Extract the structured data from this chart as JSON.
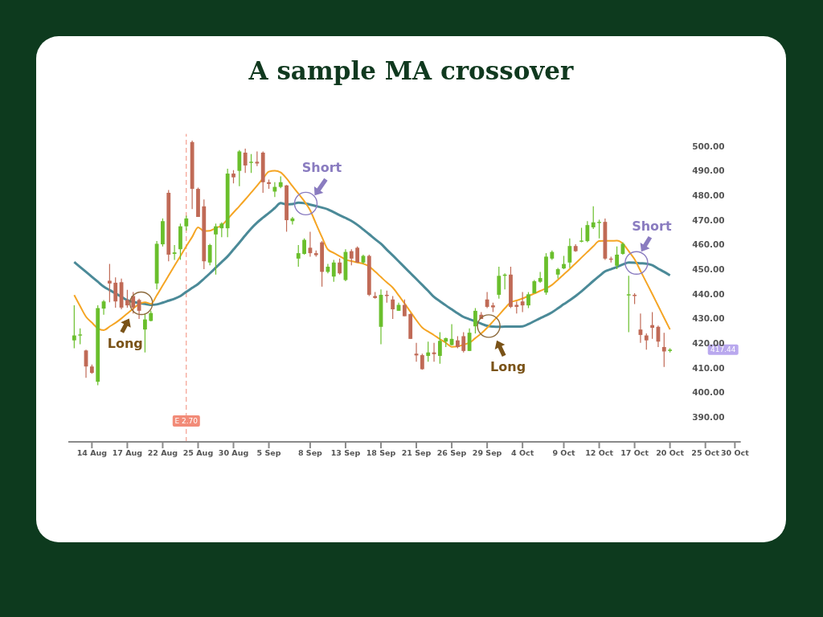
{
  "chart_data": {
    "type": "candlestick",
    "title": "A sample MA crossover",
    "categories": [
      null,
      null,
      null,
      "14 Aug",
      null,
      null,
      null,
      null,
      null,
      "17 Aug",
      null,
      null,
      null,
      null,
      null,
      "22 Aug",
      null,
      null,
      null,
      null,
      null,
      "25 Aug",
      null,
      null,
      null,
      null,
      null,
      "30 Aug",
      null,
      null,
      null,
      null,
      null,
      "5 Sep",
      null,
      null,
      null,
      null,
      null,
      null,
      "8 Sep",
      null,
      null,
      null,
      null,
      null,
      "13 Sep",
      null,
      null,
      null,
      null,
      null,
      "18 Sep",
      null,
      null,
      null,
      null,
      null,
      "21 Sep",
      null,
      null,
      null,
      null,
      null,
      "26 Sep",
      null,
      null,
      null,
      null,
      null,
      "29 Sep",
      null,
      null,
      null,
      null,
      null,
      "4 Oct",
      null,
      null,
      null,
      null,
      null,
      null,
      "9 Oct",
      null,
      null,
      null,
      null,
      null,
      "12 Oct",
      null,
      null,
      null,
      null,
      null,
      "17 Oct",
      null,
      null,
      null,
      null,
      null,
      "20 Oct",
      null,
      null,
      null,
      null,
      null,
      "25 Oct",
      null,
      null,
      null,
      null,
      "30 Oct"
    ],
    "ohlc": [
      [
        421.2,
        435.4,
        418.0,
        423.2
      ],
      [
        423.2,
        426.1,
        419.6,
        423.6
      ],
      [
        417.1,
        417.4,
        406.0,
        410.6
      ],
      [
        410.6,
        411.4,
        407.6,
        408.0
      ],
      [
        404.4,
        435.4,
        403.0,
        434.3
      ],
      [
        434.1,
        437.6,
        431.6,
        437.0
      ],
      [
        445.4,
        452.2,
        436.7,
        444.3
      ],
      [
        444.6,
        446.8,
        434.5,
        437.0
      ],
      [
        444.8,
        446.3,
        433.8,
        434.5
      ],
      [
        437.6,
        441.7,
        434.5,
        435.4
      ],
      [
        439.2,
        440.8,
        432.1,
        434.5
      ],
      [
        437.6,
        438.1,
        429.9,
        433.2
      ],
      [
        425.6,
        432.1,
        416.3,
        429.7
      ],
      [
        429.1,
        433.2,
        428.9,
        432.3
      ],
      [
        444.3,
        461.5,
        441.9,
        460.4
      ],
      [
        460.2,
        470.7,
        459.3,
        469.6
      ],
      [
        481.1,
        482.2,
        453.3,
        456.0
      ],
      [
        456.3,
        459.9,
        453.9,
        456.9
      ],
      [
        458.2,
        468.6,
        453.9,
        467.5
      ],
      [
        467.5,
        471.8,
        465.8,
        470.7
      ],
      [
        501.7,
        502.3,
        474.5,
        482.7
      ],
      [
        482.7,
        483.2,
        471.3,
        471.3
      ],
      [
        475.6,
        478.4,
        450.1,
        453.3
      ],
      [
        452.8,
        460.4,
        451.7,
        459.9
      ],
      [
        464.2,
        468.6,
        447.9,
        467.5
      ],
      [
        466.7,
        469.1,
        463.1,
        468.6
      ],
      [
        466.7,
        490.9,
        463.1,
        488.9
      ],
      [
        488.9,
        490.3,
        484.9,
        487.4
      ],
      [
        490.0,
        498.5,
        483.8,
        497.9
      ],
      [
        497.4,
        499.0,
        489.2,
        492.2
      ],
      [
        493.3,
        496.8,
        489.2,
        493.7
      ],
      [
        493.7,
        497.9,
        491.9,
        493.0
      ],
      [
        497.4,
        497.9,
        481.1,
        485.4
      ],
      [
        485.4,
        486.5,
        482.7,
        484.7
      ],
      [
        481.6,
        485.4,
        479.4,
        483.5
      ],
      [
        483.5,
        487.8,
        483.0,
        485.4
      ],
      [
        484.1,
        484.3,
        465.3,
        470.0
      ],
      [
        469.6,
        471.3,
        468.2,
        470.7
      ],
      [
        454.4,
        459.9,
        451.1,
        456.6
      ],
      [
        456.3,
        462.6,
        456.0,
        462.0
      ],
      [
        458.8,
        465.3,
        455.2,
        456.6
      ],
      [
        456.6,
        457.7,
        455.2,
        455.8
      ],
      [
        461.0,
        461.5,
        443.0,
        449.0
      ],
      [
        449.0,
        452.2,
        448.4,
        451.1
      ],
      [
        447.1,
        453.9,
        445.0,
        452.8
      ],
      [
        452.8,
        454.4,
        447.9,
        448.4
      ],
      [
        445.7,
        458.2,
        445.2,
        457.1
      ],
      [
        457.4,
        458.2,
        451.7,
        454.4
      ],
      [
        458.8,
        459.3,
        452.8,
        452.8
      ],
      [
        452.8,
        456.0,
        452.2,
        455.5
      ],
      [
        455.5,
        456.0,
        439.2,
        439.7
      ],
      [
        439.2,
        440.8,
        438.1,
        438.4
      ],
      [
        426.7,
        441.9,
        419.6,
        439.7
      ],
      [
        439.7,
        441.4,
        436.5,
        439.2
      ],
      [
        437.8,
        439.2,
        429.9,
        433.8
      ],
      [
        433.2,
        436.5,
        433.2,
        435.6
      ],
      [
        435.6,
        437.8,
        431.0,
        431.0
      ],
      [
        431.9,
        432.1,
        421.8,
        421.8
      ],
      [
        415.8,
        420.2,
        412.5,
        415.1
      ],
      [
        415.2,
        415.8,
        409.3,
        409.5
      ],
      [
        414.9,
        420.7,
        412.5,
        416.3
      ],
      [
        416.3,
        420.2,
        412.5,
        415.6
      ],
      [
        414.9,
        424.5,
        411.7,
        421.0
      ],
      [
        420.7,
        422.3,
        418.5,
        422.1
      ],
      [
        419.3,
        427.8,
        419.1,
        421.8
      ],
      [
        421.2,
        422.9,
        418.0,
        418.5
      ],
      [
        422.9,
        424.5,
        416.3,
        416.9
      ],
      [
        416.9,
        426.1,
        416.9,
        424.3
      ],
      [
        426.9,
        434.3,
        424.0,
        433.2
      ],
      [
        431.6,
        432.7,
        429.9,
        429.9
      ],
      [
        437.8,
        440.8,
        434.3,
        434.8
      ],
      [
        435.4,
        436.5,
        432.7,
        434.6
      ],
      [
        439.7,
        451.1,
        438.1,
        447.4
      ],
      [
        447.4,
        448.4,
        441.9,
        447.9
      ],
      [
        447.9,
        451.1,
        434.3,
        434.8
      ],
      [
        435.6,
        437.0,
        432.1,
        434.8
      ],
      [
        437.0,
        440.8,
        432.7,
        435.4
      ],
      [
        435.4,
        440.8,
        434.3,
        439.9
      ],
      [
        440.3,
        445.7,
        440.3,
        445.2
      ],
      [
        445.0,
        449.0,
        444.6,
        446.5
      ],
      [
        440.6,
        456.6,
        439.7,
        455.2
      ],
      [
        454.4,
        457.7,
        453.9,
        457.1
      ],
      [
        447.9,
        450.6,
        446.3,
        450.1
      ],
      [
        450.4,
        455.5,
        450.1,
        452.2
      ],
      [
        452.8,
        462.6,
        450.6,
        459.5
      ],
      [
        459.5,
        460.2,
        457.1,
        457.4
      ],
      [
        461.3,
        466.9,
        461.0,
        461.7
      ],
      [
        461.5,
        469.6,
        461.0,
        468.0
      ],
      [
        467.1,
        475.6,
        466.4,
        469.1
      ],
      [
        468.9,
        470.2,
        462.6,
        469.3
      ],
      [
        469.3,
        470.7,
        453.9,
        454.4
      ],
      [
        454.4,
        455.2,
        452.8,
        454.1
      ],
      [
        451.5,
        459.3,
        450.1,
        456.0
      ],
      [
        456.3,
        461.0,
        456.0,
        460.4
      ],
      [
        439.5,
        447.4,
        424.5,
        439.9
      ],
      [
        439.7,
        440.3,
        435.9,
        439.2
      ],
      [
        425.6,
        432.1,
        420.2,
        423.4
      ],
      [
        423.2,
        424.0,
        417.4,
        421.2
      ],
      [
        427.4,
        432.7,
        421.8,
        426.3
      ],
      [
        426.7,
        427.2,
        418.5,
        420.7
      ],
      [
        418.5,
        424.3,
        410.4,
        416.7
      ],
      [
        416.9,
        418.0,
        416.3,
        417.44
      ],
      null,
      null,
      null,
      null,
      null,
      null,
      null,
      null,
      null,
      null,
      null
    ],
    "colors": [
      "#6abf2c",
      "#6abf2c",
      "#c06a56",
      "#c06a56",
      "#6abf2c",
      "#6abf2c",
      "#c06a56",
      "#c06a56",
      "#c06a56",
      "#c06a56",
      "#c06a56",
      "#c06a56",
      "#6abf2c",
      "#6abf2c",
      "#6abf2c",
      "#6abf2c",
      "#c06a56",
      "#6abf2c",
      "#6abf2c",
      "#6abf2c",
      "#c06a56",
      "#c06a56",
      "#c06a56",
      "#6abf2c",
      "#6abf2c",
      "#6abf2c",
      "#6abf2c",
      "#c06a56",
      "#6abf2c",
      "#c06a56",
      "#6abf2c",
      "#c06a56",
      "#c06a56",
      "#c06a56",
      "#6abf2c",
      "#6abf2c",
      "#c06a56",
      "#6abf2c",
      "#6abf2c",
      "#6abf2c",
      "#c06a56",
      "#c06a56",
      "#c06a56",
      "#6abf2c",
      "#6abf2c",
      "#c06a56",
      "#6abf2c",
      "#c06a56",
      "#c06a56",
      "#6abf2c",
      "#c06a56",
      "#c06a56",
      "#6abf2c",
      "#c06a56",
      "#c06a56",
      "#6abf2c",
      "#c06a56",
      "#c06a56",
      "#c06a56",
      "#c06a56",
      "#6abf2c",
      "#c06a56",
      "#6abf2c",
      "#6abf2c",
      "#6abf2c",
      "#c06a56",
      "#c06a56",
      "#6abf2c",
      "#6abf2c",
      "#c06a56",
      "#c06a56",
      "#c06a56",
      "#6abf2c",
      "#6abf2c",
      "#c06a56",
      "#c06a56",
      "#c06a56",
      "#6abf2c",
      "#6abf2c",
      "#6abf2c",
      "#6abf2c",
      "#6abf2c",
      "#6abf2c",
      "#6abf2c",
      "#6abf2c",
      "#c06a56",
      "#6abf2c",
      "#6abf2c",
      "#6abf2c",
      "#6abf2c",
      "#c06a56",
      "#c06a56",
      "#6abf2c",
      "#6abf2c",
      "#6abf2c",
      "#c06a56",
      "#c06a56",
      "#c06a56",
      "#c06a56",
      "#c06a56",
      "#c06a56",
      "#6abf2c",
      null,
      null,
      null,
      null,
      null,
      null,
      null,
      null,
      null,
      null,
      null
    ],
    "series": [
      {
        "type": "line",
        "color": "#4b8a98",
        "values": [
          453.0,
          451.0,
          449.0,
          447.0,
          445.0,
          443.0,
          441.6,
          440.3,
          438.9,
          437.5,
          436.8,
          436.4,
          436.0,
          435.6,
          435.8,
          436.5,
          437.3,
          438.1,
          439.2,
          440.9,
          442.5,
          444.1,
          446.2,
          448.4,
          450.7,
          453.0,
          455.3,
          458.1,
          460.9,
          463.8,
          466.6,
          469.0,
          471.0,
          472.9,
          474.9,
          476.9,
          476.4,
          476.5,
          477.1,
          476.9,
          476.3,
          475.7,
          475.1,
          474.4,
          473.2,
          472.0,
          470.9,
          469.7,
          468.1,
          466.2,
          464.3,
          462.3,
          460.4,
          458.0,
          455.7,
          453.3,
          450.9,
          448.5,
          446.1,
          443.7,
          441.3,
          438.8,
          437.1,
          435.4,
          433.8,
          432.2,
          430.7,
          429.8,
          428.9,
          428.0,
          427.1,
          426.8,
          426.7,
          426.8,
          426.8,
          426.8,
          426.9,
          427.8,
          429.0,
          430.2,
          431.3,
          432.6,
          434.2,
          435.9,
          437.5,
          439.2,
          441.1,
          443.2,
          445.3,
          447.3,
          449.2,
          450.1,
          451.0,
          452.0,
          452.8,
          452.7,
          452.5,
          452.3,
          451.7,
          450.3,
          449.0,
          447.6,
          null,
          null,
          null,
          null,
          null,
          null,
          null,
          null,
          null,
          null,
          null
        ]
      },
      {
        "type": "line",
        "color": "#f5a524",
        "values": [
          439.6,
          435.1,
          430.8,
          428.4,
          426.1,
          425.3,
          426.8,
          428.3,
          430.1,
          432.1,
          434.1,
          436.0,
          436.7,
          436.0,
          439.5,
          443.5,
          447.5,
          451.5,
          455.4,
          459.4,
          463.2,
          467.1,
          465.6,
          465.7,
          466.8,
          467.9,
          470.4,
          473.1,
          475.7,
          478.4,
          481.2,
          484.0,
          486.9,
          489.7,
          490.1,
          489.4,
          486.9,
          483.8,
          480.8,
          477.7,
          474.0,
          468.5,
          463.1,
          458.1,
          456.7,
          455.4,
          454.0,
          453.4,
          452.8,
          452.3,
          451.2,
          449.1,
          446.9,
          444.7,
          442.6,
          439.5,
          436.2,
          432.8,
          429.4,
          426.4,
          424.8,
          423.3,
          421.7,
          420.2,
          418.6,
          418.7,
          419.5,
          420.2,
          422.1,
          424.0,
          426.3,
          428.9,
          431.5,
          434.2,
          436.6,
          437.4,
          438.2,
          439.2,
          440.2,
          441.3,
          442.3,
          443.7,
          445.8,
          448.0,
          450.2,
          452.5,
          454.8,
          457.1,
          459.4,
          461.5,
          461.6,
          461.6,
          461.7,
          460.5,
          457.4,
          454.1,
          449.4,
          444.7,
          440.0,
          435.2,
          430.4,
          425.6,
          null,
          null,
          null,
          null,
          null,
          null,
          null,
          null,
          null,
          null,
          null
        ]
      }
    ],
    "ylim": [
      380,
      505
    ],
    "yticks": [
      {
        "value": 390,
        "label": "390.00"
      },
      {
        "value": 400,
        "label": "400.00"
      },
      {
        "value": 410,
        "label": "410.00"
      },
      {
        "value": 420,
        "label": "420.00"
      },
      {
        "value": 430,
        "label": "430.00"
      },
      {
        "value": 440,
        "label": "440.00"
      },
      {
        "value": 450,
        "label": "450.00"
      },
      {
        "value": 460,
        "label": "460.00"
      },
      {
        "value": 470,
        "label": "470.00"
      },
      {
        "value": 480,
        "label": "480.00"
      },
      {
        "value": 490,
        "label": "490.00"
      },
      {
        "value": 500,
        "label": "500.00"
      }
    ],
    "annotations": [
      "Long",
      "Short",
      "Long",
      "Short",
      "E 2.70",
      {
        "text": "417.44",
        "y": 417.44
      }
    ]
  }
}
